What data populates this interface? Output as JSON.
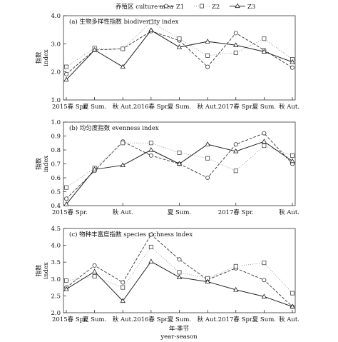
{
  "legend": {
    "title": "养殖区 culture area",
    "items": [
      {
        "name": "Z1",
        "marker": "circle",
        "dash": "4,2",
        "color": "#333333"
      },
      {
        "name": "Z2",
        "marker": "square",
        "dash": "1,2",
        "color": "#999999"
      },
      {
        "name": "Z3",
        "marker": "triangle",
        "dash": "",
        "color": "#222222"
      }
    ]
  },
  "xlabel": {
    "line1": "年-季节",
    "line2": "year-season"
  },
  "chart_data": [
    {
      "type": "line",
      "title": "(a) 生物多样性指数 biodiversity index",
      "ylabel": {
        "line1": "指数",
        "line2": "index"
      },
      "ylim": [
        1.0,
        4.0
      ],
      "yticks": [
        "1.0",
        "2.0",
        "3.0",
        "4.0"
      ],
      "yticks_values": [
        1.0,
        2.0,
        3.0,
        4.0
      ],
      "xticks": [
        "2015春 Spr.",
        "夏 Sum.",
        "秋 Aut.",
        "2016春 Spr.",
        "夏 Sum.",
        "秋 Aut.",
        "2017春 Spr.",
        "夏 Sum.",
        "秋 Aut."
      ],
      "xticks_pos": [
        0,
        1,
        2,
        3,
        4,
        5,
        6,
        7,
        8
      ],
      "series": [
        {
          "name": "Z1",
          "values": [
            1.92,
            2.78,
            2.82,
            3.45,
            3.12,
            2.18,
            3.38,
            2.78,
            2.15
          ]
        },
        {
          "name": "Z2",
          "values": [
            2.18,
            2.85,
            2.82,
            3.78,
            3.18,
            2.58,
            2.68,
            3.18,
            2.45
          ]
        },
        {
          "name": "Z3",
          "values": [
            1.72,
            2.78,
            2.18,
            3.48,
            2.88,
            3.08,
            2.95,
            2.72,
            2.35
          ]
        }
      ]
    },
    {
      "type": "line",
      "title": "(b) 均匀度指数 evenness index",
      "ylabel": {
        "line1": "指数",
        "line2": "index"
      },
      "ylim": [
        0.4,
        1.0
      ],
      "yticks": [
        "0.4",
        "0.5",
        "0.6",
        "0.7",
        "0.8",
        "0.9",
        "1.0"
      ],
      "yticks_values": [
        0.4,
        0.5,
        0.6,
        0.7,
        0.8,
        0.9,
        1.0
      ],
      "xticks": [
        "2015春 Spr.",
        "秋 Aut.",
        "夏 Sum.",
        "2017春 Spr.",
        "秋 Aut."
      ],
      "xticks_pos": [
        0,
        2,
        4,
        6,
        8
      ],
      "series": [
        {
          "name": "Z1",
          "values": [
            0.45,
            0.65,
            0.86,
            0.76,
            0.7,
            0.6,
            0.84,
            0.92,
            0.7
          ]
        },
        {
          "name": "Z2",
          "values": [
            0.53,
            0.67,
            0.85,
            0.85,
            0.78,
            0.74,
            0.65,
            0.83,
            0.76
          ]
        },
        {
          "name": "Z3",
          "values": [
            0.41,
            0.66,
            0.69,
            0.8,
            0.7,
            0.84,
            0.79,
            0.86,
            0.72
          ]
        }
      ]
    },
    {
      "type": "line",
      "title": "(c) 物种丰富度指数 species richness index",
      "ylabel": {
        "line1": "指数",
        "line2": "index"
      },
      "ylim": [
        2.0,
        4.5
      ],
      "yticks": [
        "2.0",
        "2.5",
        "3.0",
        "3.5",
        "4.0",
        "4.5"
      ],
      "yticks_values": [
        2.0,
        2.5,
        3.0,
        3.5,
        4.0,
        4.5
      ],
      "xticks": [
        "2015春 Spr.",
        "夏 Sum.",
        "秋 Aut.",
        "2016春 Spr.",
        "夏 Sum.",
        "秋 Aut.",
        "2017春 Spr.",
        "夏 Sum.",
        "秋 Aut."
      ],
      "xticks_pos": [
        0,
        1,
        2,
        3,
        4,
        5,
        6,
        7,
        8
      ],
      "series": [
        {
          "name": "Z1",
          "values": [
            2.75,
            3.4,
            2.9,
            4.32,
            3.58,
            2.98,
            3.32,
            2.97,
            2.18
          ]
        },
        {
          "name": "Z2",
          "values": [
            2.95,
            3.08,
            2.75,
            3.95,
            3.2,
            3.02,
            3.38,
            3.48,
            2.58
          ]
        },
        {
          "name": "Z3",
          "values": [
            2.7,
            3.22,
            2.35,
            3.52,
            3.05,
            2.92,
            2.68,
            2.48,
            2.18
          ]
        }
      ]
    }
  ]
}
